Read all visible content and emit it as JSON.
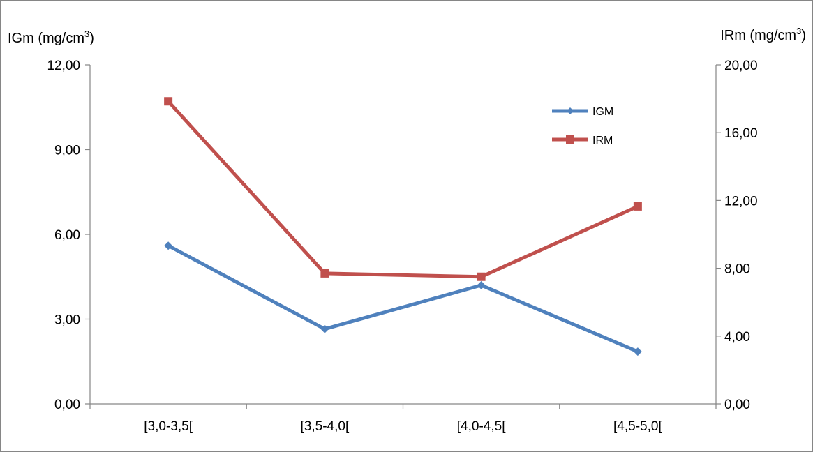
{
  "chart_data": {
    "type": "line",
    "categories": [
      "[3,0-3,5[",
      "[3,5-4,0[",
      "[4,0-4,5[",
      "[4,5-5,0["
    ],
    "series": [
      {
        "name": "IGM",
        "axis": "left",
        "color": "#4f81bd",
        "marker": "diamond",
        "values": [
          5.6,
          2.65,
          4.2,
          1.85
        ]
      },
      {
        "name": "IRM",
        "axis": "right",
        "color": "#c0504d",
        "marker": "square",
        "values": [
          17.85,
          7.7,
          7.5,
          11.65
        ]
      }
    ],
    "y_left": {
      "label_main": "IGm (mg/cm",
      "label_sup": "3",
      "label_end": ")",
      "range": [
        0,
        12
      ],
      "ticks": [
        0,
        3,
        6,
        9,
        12
      ],
      "tick_labels": [
        "0,00",
        "3,00",
        "6,00",
        "9,00",
        "12,00"
      ]
    },
    "y_right": {
      "label_main": "IRm (mg/cm",
      "label_sup": "3",
      "label_end": ")",
      "range": [
        0,
        20
      ],
      "ticks": [
        0,
        4,
        8,
        12,
        16,
        20
      ],
      "tick_labels": [
        "0,00",
        "4,00",
        "8,00",
        "12,00",
        "16,00",
        "20,00"
      ]
    },
    "grid": false,
    "legend_position": "top-right"
  }
}
